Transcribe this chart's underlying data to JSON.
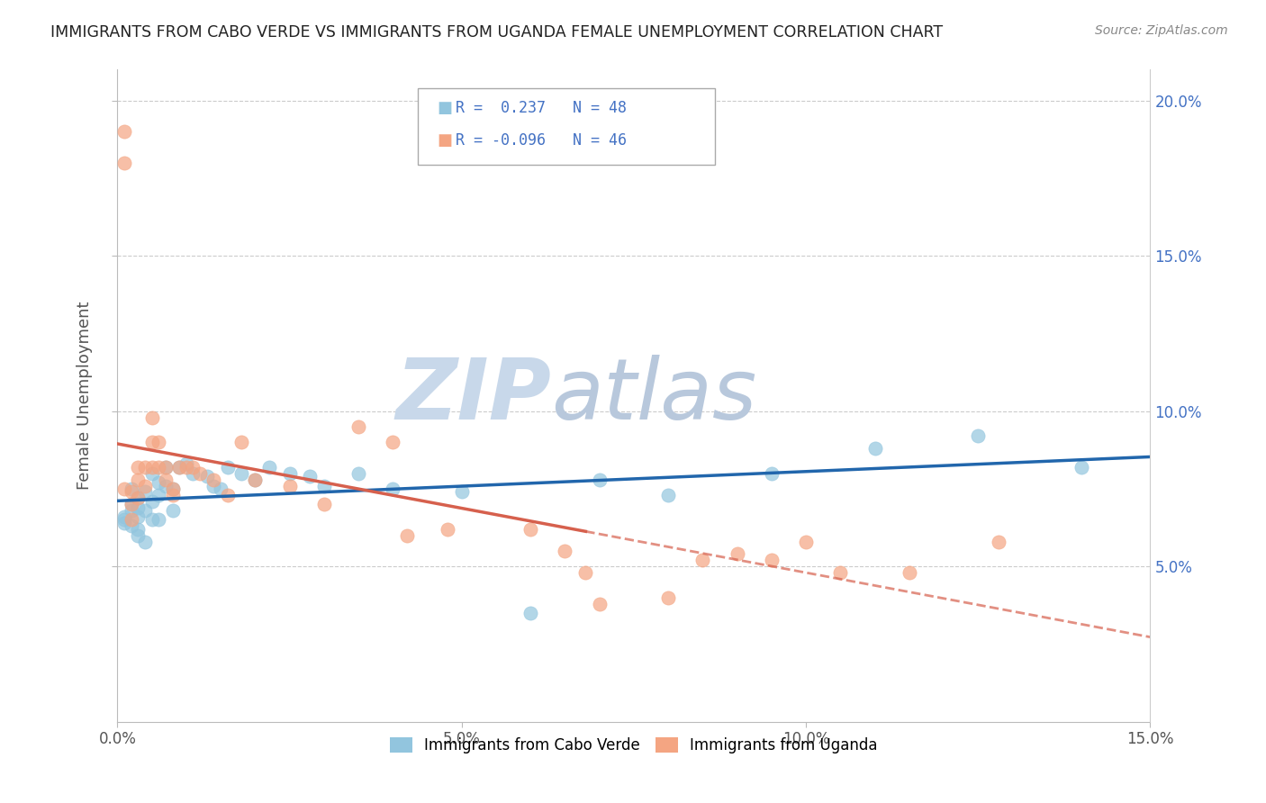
{
  "title": "IMMIGRANTS FROM CABO VERDE VS IMMIGRANTS FROM UGANDA FEMALE UNEMPLOYMENT CORRELATION CHART",
  "source": "Source: ZipAtlas.com",
  "ylabel": "Female Unemployment",
  "xlabel": "",
  "xlim": [
    0.0,
    0.15
  ],
  "ylim": [
    0.0,
    0.21
  ],
  "yticks": [
    0.05,
    0.1,
    0.15,
    0.2
  ],
  "ytick_labels": [
    "5.0%",
    "10.0%",
    "15.0%",
    "20.0%"
  ],
  "xticks": [
    0.0,
    0.05,
    0.1,
    0.15
  ],
  "xtick_labels": [
    "0.0%",
    "5.0%",
    "10.0%",
    "15.0%"
  ],
  "cabo_verde_R": 0.237,
  "cabo_verde_N": 48,
  "uganda_R": -0.096,
  "uganda_N": 46,
  "cabo_verde_color": "#92c5de",
  "uganda_color": "#f4a582",
  "cabo_verde_line_color": "#2166ac",
  "uganda_line_color": "#d6604d",
  "watermark_color": "#dce6f0",
  "background_color": "#ffffff",
  "cabo_verde_scatter_x": [
    0.001,
    0.001,
    0.001,
    0.002,
    0.002,
    0.002,
    0.002,
    0.003,
    0.003,
    0.003,
    0.003,
    0.003,
    0.004,
    0.004,
    0.004,
    0.005,
    0.005,
    0.005,
    0.006,
    0.006,
    0.006,
    0.007,
    0.007,
    0.008,
    0.008,
    0.009,
    0.01,
    0.011,
    0.013,
    0.014,
    0.015,
    0.016,
    0.018,
    0.02,
    0.022,
    0.025,
    0.028,
    0.03,
    0.035,
    0.04,
    0.05,
    0.06,
    0.07,
    0.08,
    0.095,
    0.11,
    0.125,
    0.14
  ],
  "cabo_verde_scatter_y": [
    0.066,
    0.065,
    0.064,
    0.075,
    0.07,
    0.068,
    0.063,
    0.072,
    0.069,
    0.066,
    0.062,
    0.06,
    0.074,
    0.068,
    0.058,
    0.08,
    0.071,
    0.065,
    0.077,
    0.073,
    0.065,
    0.082,
    0.076,
    0.075,
    0.068,
    0.082,
    0.083,
    0.08,
    0.079,
    0.076,
    0.075,
    0.082,
    0.08,
    0.078,
    0.082,
    0.08,
    0.079,
    0.076,
    0.08,
    0.075,
    0.074,
    0.035,
    0.078,
    0.073,
    0.08,
    0.088,
    0.092,
    0.082
  ],
  "uganda_scatter_x": [
    0.001,
    0.001,
    0.001,
    0.002,
    0.002,
    0.002,
    0.003,
    0.003,
    0.003,
    0.004,
    0.004,
    0.005,
    0.005,
    0.005,
    0.006,
    0.006,
    0.007,
    0.007,
    0.008,
    0.008,
    0.009,
    0.01,
    0.011,
    0.012,
    0.014,
    0.016,
    0.018,
    0.02,
    0.025,
    0.03,
    0.035,
    0.04,
    0.042,
    0.048,
    0.06,
    0.065,
    0.068,
    0.07,
    0.08,
    0.085,
    0.09,
    0.095,
    0.1,
    0.105,
    0.115,
    0.128
  ],
  "uganda_scatter_y": [
    0.19,
    0.18,
    0.075,
    0.074,
    0.07,
    0.065,
    0.082,
    0.078,
    0.072,
    0.082,
    0.076,
    0.098,
    0.09,
    0.082,
    0.09,
    0.082,
    0.082,
    0.078,
    0.075,
    0.073,
    0.082,
    0.082,
    0.082,
    0.08,
    0.078,
    0.073,
    0.09,
    0.078,
    0.076,
    0.07,
    0.095,
    0.09,
    0.06,
    0.062,
    0.062,
    0.055,
    0.048,
    0.038,
    0.04,
    0.052,
    0.054,
    0.052,
    0.058,
    0.048,
    0.048,
    0.058
  ]
}
